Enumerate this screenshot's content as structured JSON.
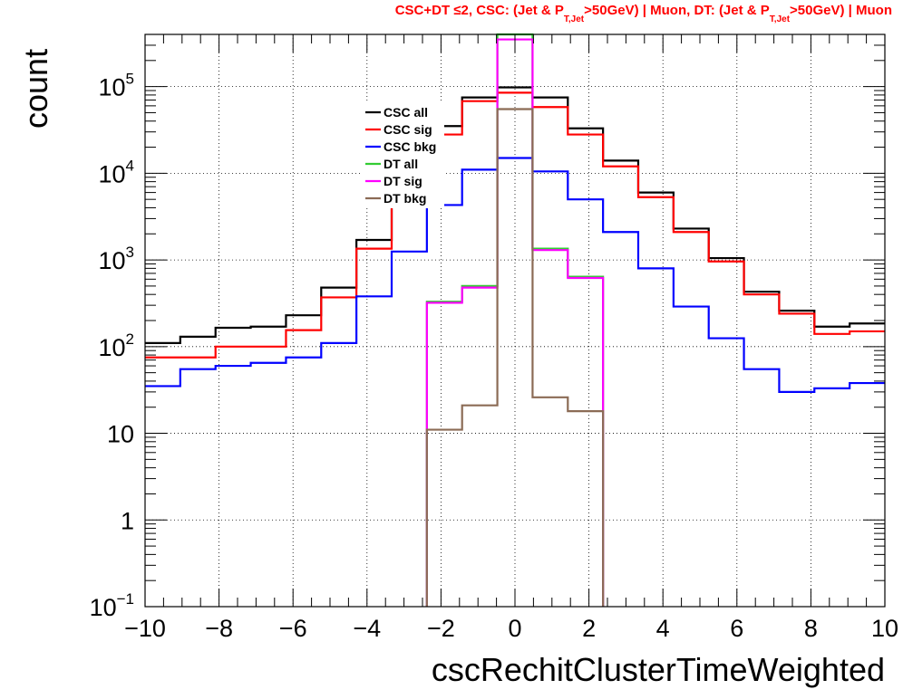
{
  "chart_data": {
    "type": "histogram",
    "title": {
      "part1": "CSC+DT ≤2, CSC: (Jet & P",
      "sub1": "T,Jet",
      "part2": ">50GeV) | Muon, DT: (Jet & P",
      "sub2": "T,Jet",
      "part3": ">50GeV) | Muon"
    },
    "xlabel": "cscRechitClusterTimeWeighted",
    "ylabel": "count",
    "xlim": [
      -10,
      10
    ],
    "ylim": [
      0.1,
      400000
    ],
    "log_y": true,
    "grid": true,
    "legend_placement": "top-left-center",
    "x_ticks": [
      {
        "value": -10,
        "label": "−10"
      },
      {
        "value": -8,
        "label": "−8"
      },
      {
        "value": -6,
        "label": "−6"
      },
      {
        "value": -4,
        "label": "−4"
      },
      {
        "value": -2,
        "label": "−2"
      },
      {
        "value": 0,
        "label": "0"
      },
      {
        "value": 2,
        "label": "2"
      },
      {
        "value": 4,
        "label": "4"
      },
      {
        "value": 6,
        "label": "6"
      },
      {
        "value": 8,
        "label": "8"
      },
      {
        "value": 10,
        "label": "10"
      }
    ],
    "y_ticks": [
      {
        "value": 0.1,
        "base": "10",
        "exp": "−1"
      },
      {
        "value": 1,
        "base": "1",
        "exp": ""
      },
      {
        "value": 10,
        "base": "10",
        "exp": ""
      },
      {
        "value": 100,
        "base": "10",
        "exp": "2"
      },
      {
        "value": 1000,
        "base": "10",
        "exp": "3"
      },
      {
        "value": 10000,
        "base": "10",
        "exp": "4"
      },
      {
        "value": 100000,
        "base": "10",
        "exp": "5"
      }
    ],
    "bin_edges": [
      -10,
      -9.048,
      -8.095,
      -7.143,
      -6.19,
      -5.238,
      -4.286,
      -3.333,
      -2.381,
      -1.429,
      -0.476,
      0.476,
      1.429,
      2.381,
      3.333,
      4.286,
      5.238,
      6.19,
      7.143,
      8.095,
      9.048,
      10
    ],
    "series": [
      {
        "name": "CSC all",
        "color": "#000000",
        "values": [
          110,
          130,
          165,
          170,
          230,
          480,
          1700,
          5500,
          35000,
          75000,
          98000,
          75000,
          33000,
          14000,
          6000,
          2300,
          1050,
          430,
          260,
          170,
          185
        ]
      },
      {
        "name": "CSC sig",
        "color": "#ff0000",
        "values": [
          75,
          75,
          100,
          100,
          155,
          370,
          1350,
          4500,
          28000,
          68000,
          85000,
          58000,
          28000,
          12000,
          5300,
          2100,
          960,
          400,
          240,
          140,
          150
        ]
      },
      {
        "name": "CSC bkg",
        "color": "#0000ff",
        "values": [
          35,
          55,
          60,
          65,
          75,
          110,
          380,
          1250,
          4300,
          11000,
          15000,
          10500,
          5000,
          2100,
          800,
          290,
          125,
          55,
          30,
          33,
          38
        ]
      },
      {
        "name": "DT all",
        "color": "#33cc33",
        "values": [
          null,
          null,
          null,
          null,
          null,
          null,
          null,
          null,
          330,
          500,
          420000,
          1350,
          640,
          null,
          null,
          null,
          null,
          null,
          null,
          null,
          null
        ]
      },
      {
        "name": "DT sig",
        "color": "#ff00ff",
        "values": [
          null,
          null,
          null,
          null,
          null,
          null,
          null,
          null,
          320,
          480,
          350000,
          1300,
          620,
          null,
          null,
          null,
          null,
          null,
          null,
          null,
          null
        ]
      },
      {
        "name": "DT bkg",
        "color": "#8b6b55",
        "values": [
          null,
          null,
          null,
          null,
          null,
          null,
          null,
          null,
          11,
          21,
          55000,
          26,
          18,
          null,
          null,
          null,
          null,
          null,
          null,
          null,
          null
        ]
      }
    ]
  }
}
